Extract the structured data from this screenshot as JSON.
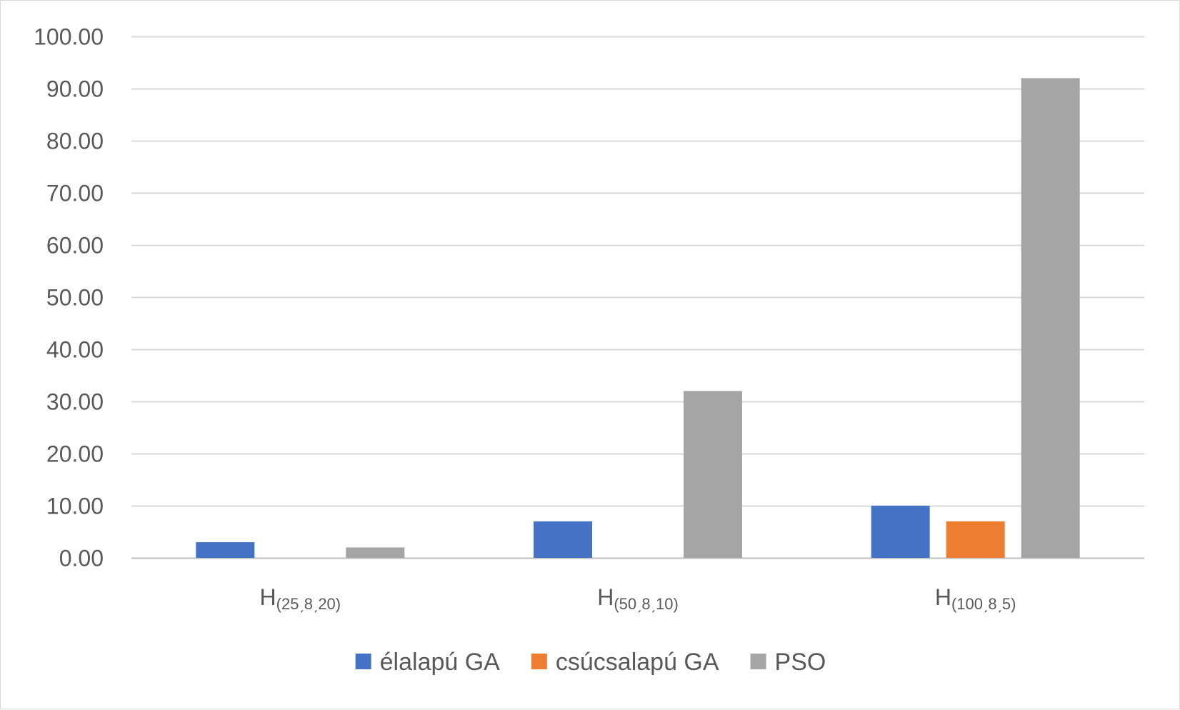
{
  "chart_data": {
    "type": "bar",
    "categories": [
      {
        "base": "H",
        "sub": "(25ˏ8ˏ20)"
      },
      {
        "base": "H",
        "sub": "(50ˏ8ˏ10)"
      },
      {
        "base": "H",
        "sub": "(100ˏ8ˏ5)"
      }
    ],
    "series": [
      {
        "name": "élalapú GA",
        "color": "#4472c4",
        "values": [
          3,
          7,
          10
        ]
      },
      {
        "name": "csúcsalapú GA",
        "color": "#ed7d31",
        "values": [
          0,
          0,
          7
        ]
      },
      {
        "name": "PSO",
        "color": "#a5a5a5",
        "values": [
          2,
          32,
          92
        ]
      }
    ],
    "ylim": [
      0,
      100
    ],
    "yticks": [
      "0.00",
      "10.00",
      "20.00",
      "30.00",
      "40.00",
      "50.00",
      "60.00",
      "70.00",
      "80.00",
      "90.00",
      "100.00"
    ],
    "ytick_values": [
      0,
      10,
      20,
      30,
      40,
      50,
      60,
      70,
      80,
      90,
      100
    ],
    "grid": true,
    "gridline_color": "#d9d9d9",
    "legend_position": "bottom"
  }
}
